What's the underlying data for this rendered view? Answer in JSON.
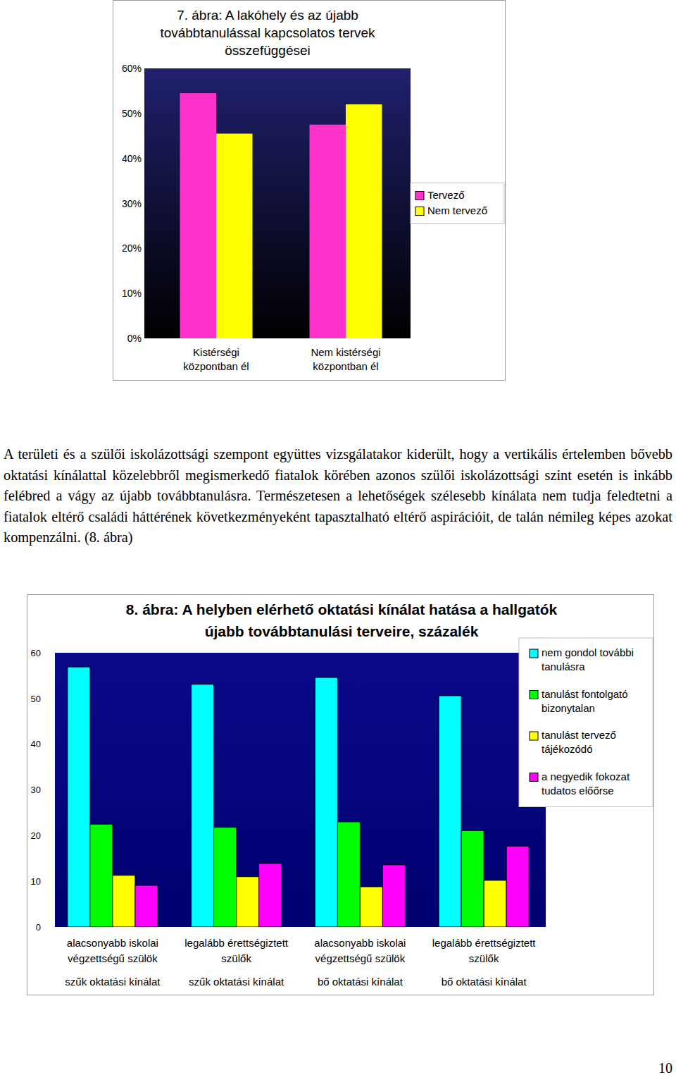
{
  "chart_data": [
    {
      "type": "bar",
      "title": "7. ábra: A lakóhely és az újabb\ntovábbtanulással kapcsolatos tervek\nösszefüggései",
      "categories": [
        "Kistérségi\nközpontban él",
        "Nem kistérségi\nközpontban él"
      ],
      "series": [
        {
          "name": "Tervező",
          "color": "#ff33cc",
          "values": [
            54.5,
            47.5
          ]
        },
        {
          "name": "Nem tervező",
          "color": "#ffff00",
          "values": [
            45.5,
            52
          ]
        }
      ],
      "ylim": [
        0,
        60
      ],
      "yticks": [
        {
          "value": 0,
          "label": "0%"
        },
        {
          "value": 10,
          "label": "10%"
        },
        {
          "value": 20,
          "label": "20%"
        },
        {
          "value": 30,
          "label": "30%"
        },
        {
          "value": 40,
          "label": "40%"
        },
        {
          "value": 50,
          "label": "50%"
        },
        {
          "value": 60,
          "label": "60%"
        }
      ],
      "grid": false,
      "legend": "right"
    },
    {
      "type": "bar",
      "title": "8. ábra: A helyben elérhető oktatási kínálat hatása a hallgatók\nújabb továbbtanulási terveire, százalék",
      "categories": [
        "alacsonyabb iskolai\nvégzettségű szülök\nszűk oktatási kínálat",
        "legalább érettségiztett\nszülők\nszűk oktatási kínálat",
        "alacsonyabb iskolai\nvégzettségű szülök\nbő oktatási kínálat",
        "legalább érettségiztett\nszülők\nbő oktatási kínálat"
      ],
      "series": [
        {
          "name": "nem gondol további\ntanulásra",
          "color": "#00ffff",
          "values": [
            56.9,
            53.1,
            54.6,
            50.6
          ]
        },
        {
          "name": "tanulást fontolgató\nbizonytalan",
          "color": "#00ff00",
          "values": [
            22.5,
            21.8,
            23.0,
            21.1
          ]
        },
        {
          "name": "tanulást tervező\ntájékozódó",
          "color": "#ffff00",
          "values": [
            11.3,
            11.0,
            8.8,
            10.2
          ]
        },
        {
          "name": "a negyedik fokozat\ntudatos előőrse",
          "color": "#ff00ff",
          "values": [
            9.1,
            13.9,
            13.6,
            17.7
          ]
        }
      ],
      "ylim": [
        0,
        60
      ],
      "yticks": [
        0,
        10,
        20,
        30,
        40,
        50,
        60
      ],
      "grid": false,
      "legend": "top-right"
    }
  ],
  "text": {
    "paragraph": "A területi és a szülői iskolázottsági szempont együttes vizsgálatakor kiderült, hogy a vertikális értelemben bővebb oktatási kínálattal közelebbről megismerkedő fiatalok körében azonos szülői iskolázottsági szint esetén is inkább felébred a vágy az újabb továbbtanulásra. Természetesen a lehetőségek szélesebb kínálata nem tudja feledtetni a fiatalok eltérő családi háttérének következményeként tapasztalható eltérő aspirációit, de talán némileg képes azokat kompenzálni. (8. ábra)",
    "page_number": "10"
  }
}
